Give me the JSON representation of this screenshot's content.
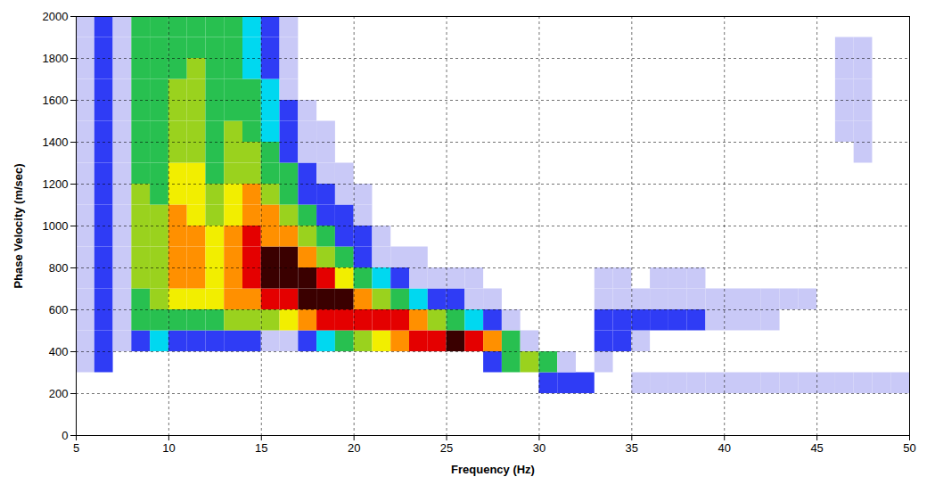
{
  "chart_data": {
    "type": "heatmap",
    "x_label": "Frequency (Hz)",
    "y_label": "Phase Velocity (m/sec)",
    "xlim": [
      5,
      50
    ],
    "ylim": [
      0,
      2000
    ],
    "xticks": [
      5,
      10,
      15,
      20,
      25,
      30,
      35,
      40,
      45,
      50
    ],
    "yticks": [
      0,
      200,
      400,
      600,
      800,
      1000,
      1200,
      1400,
      1600,
      1800,
      2000
    ],
    "grid": true,
    "frequency_edges": [
      5,
      6,
      7,
      8,
      9,
      10,
      11,
      12,
      13,
      14,
      15,
      16,
      17,
      18,
      19,
      20,
      21,
      22,
      23,
      24,
      25,
      26,
      27,
      28,
      29,
      30,
      31,
      32,
      33,
      34,
      35,
      36,
      37,
      38,
      39,
      40,
      41,
      42,
      43,
      44,
      45,
      46,
      47,
      48,
      49,
      50
    ],
    "velocity_edges": [
      0,
      100,
      200,
      300,
      400,
      500,
      600,
      700,
      800,
      900,
      1000,
      1100,
      1200,
      1300,
      1400,
      1500,
      1600,
      1700,
      1800,
      1900,
      2000
    ],
    "zlim": [
      0,
      9
    ],
    "amplitude": [
      [
        0,
        0,
        0,
        1,
        1,
        1,
        1,
        1,
        1,
        1,
        1,
        1,
        1,
        1,
        1,
        1,
        1,
        1,
        1,
        1
      ],
      [
        0,
        0,
        0,
        2,
        2,
        2,
        2,
        2,
        2,
        2,
        2,
        2,
        2,
        2,
        2,
        2,
        2,
        2,
        2,
        2
      ],
      [
        0,
        0,
        0,
        0,
        1,
        1,
        1,
        1,
        1,
        1,
        1,
        1,
        1,
        1,
        1,
        1,
        1,
        1,
        1,
        1
      ],
      [
        0,
        0,
        0,
        0,
        2,
        4,
        4,
        5,
        5,
        5,
        5,
        5,
        4,
        4,
        4,
        4,
        4,
        4,
        4,
        4
      ],
      [
        0,
        0,
        0,
        0,
        3,
        4,
        5,
        5,
        5,
        5,
        5,
        4,
        4,
        4,
        4,
        4,
        4,
        4,
        4,
        4
      ],
      [
        0,
        0,
        0,
        0,
        2,
        4,
        6,
        7,
        7,
        7,
        7,
        6,
        6,
        5,
        5,
        5,
        5,
        4,
        4,
        4
      ],
      [
        0,
        0,
        0,
        0,
        2,
        4,
        6,
        7,
        7,
        7,
        6,
        6,
        6,
        5,
        5,
        5,
        5,
        5,
        4,
        4
      ],
      [
        0,
        0,
        0,
        0,
        2,
        4,
        6,
        6,
        6,
        6,
        5,
        5,
        4,
        4,
        4,
        4,
        4,
        4,
        4,
        4
      ],
      [
        0,
        0,
        0,
        0,
        2,
        5,
        7,
        7,
        7,
        7,
        6,
        6,
        5,
        5,
        5,
        4,
        4,
        4,
        4,
        4
      ],
      [
        0,
        0,
        0,
        0,
        2,
        5,
        7,
        8,
        8,
        8,
        7,
        7,
        5,
        5,
        4,
        4,
        4,
        3,
        3,
        3
      ],
      [
        0,
        0,
        0,
        0,
        1,
        5,
        8,
        9,
        9,
        7,
        7,
        5,
        4,
        4,
        3,
        3,
        3,
        2,
        2,
        2
      ],
      [
        0,
        0,
        0,
        0,
        1,
        6,
        8,
        9,
        9,
        7,
        5,
        4,
        4,
        2,
        2,
        2,
        1,
        1,
        1,
        1
      ],
      [
        0,
        0,
        0,
        0,
        2,
        7,
        9,
        9,
        7,
        5,
        4,
        2,
        2,
        1,
        1,
        1,
        0,
        0,
        0,
        0
      ],
      [
        0,
        0,
        0,
        0,
        3,
        8,
        9,
        8,
        5,
        4,
        2,
        2,
        1,
        1,
        1,
        0,
        0,
        0,
        0,
        0
      ],
      [
        0,
        0,
        0,
        0,
        4,
        8,
        9,
        6,
        4,
        2,
        2,
        1,
        1,
        0,
        0,
        0,
        0,
        0,
        0,
        0
      ],
      [
        0,
        0,
        0,
        0,
        5,
        8,
        7,
        4,
        2,
        2,
        1,
        1,
        0,
        0,
        0,
        0,
        0,
        0,
        0,
        0
      ],
      [
        0,
        0,
        0,
        0,
        6,
        8,
        5,
        3,
        1,
        1,
        0,
        0,
        0,
        0,
        0,
        0,
        0,
        0,
        0,
        0
      ],
      [
        0,
        0,
        0,
        0,
        7,
        8,
        4,
        2,
        1,
        0,
        0,
        0,
        0,
        0,
        0,
        0,
        0,
        0,
        0,
        0
      ],
      [
        0,
        0,
        0,
        0,
        8,
        7,
        3,
        1,
        1,
        0,
        0,
        0,
        0,
        0,
        0,
        0,
        0,
        0,
        0,
        0
      ],
      [
        0,
        0,
        0,
        0,
        8,
        5,
        2,
        1,
        0,
        0,
        0,
        0,
        0,
        0,
        0,
        0,
        0,
        0,
        0,
        0
      ],
      [
        0,
        0,
        0,
        0,
        9,
        4,
        2,
        1,
        0,
        0,
        0,
        0,
        0,
        0,
        0,
        0,
        0,
        0,
        0,
        0
      ],
      [
        0,
        0,
        0,
        0,
        8,
        3,
        1,
        1,
        0,
        0,
        0,
        0,
        0,
        0,
        0,
        0,
        0,
        0,
        0,
        0
      ],
      [
        0,
        0,
        0,
        2,
        7,
        2,
        1,
        0,
        0,
        0,
        0,
        0,
        0,
        0,
        0,
        0,
        0,
        0,
        0,
        0
      ],
      [
        0,
        0,
        0,
        4,
        4,
        1,
        0,
        0,
        0,
        0,
        0,
        0,
        0,
        0,
        0,
        0,
        0,
        0,
        0,
        0
      ],
      [
        0,
        0,
        0,
        5,
        1,
        0,
        0,
        0,
        0,
        0,
        0,
        0,
        0,
        0,
        0,
        0,
        0,
        0,
        0,
        0
      ],
      [
        0,
        0,
        2,
        4,
        0,
        0,
        0,
        0,
        0,
        0,
        0,
        0,
        0,
        0,
        0,
        0,
        0,
        0,
        0,
        0
      ],
      [
        0,
        0,
        2,
        1,
        0,
        0,
        0,
        0,
        0,
        0,
        0,
        0,
        0,
        0,
        0,
        0,
        0,
        0,
        0,
        0
      ],
      [
        0,
        0,
        2,
        0,
        0,
        0,
        0,
        0,
        0,
        0,
        0,
        0,
        0,
        0,
        0,
        0,
        0,
        0,
        0,
        0
      ],
      [
        0,
        0,
        0,
        1,
        2,
        2,
        1,
        1,
        0,
        0,
        0,
        0,
        0,
        0,
        0,
        0,
        0,
        0,
        0,
        0
      ],
      [
        0,
        0,
        0,
        0,
        2,
        2,
        1,
        1,
        0,
        0,
        0,
        0,
        0,
        0,
        0,
        0,
        0,
        0,
        0,
        0
      ],
      [
        0,
        0,
        1,
        0,
        1,
        2,
        1,
        0,
        0,
        0,
        0,
        0,
        0,
        0,
        0,
        0,
        0,
        0,
        0,
        0
      ],
      [
        0,
        0,
        1,
        0,
        0,
        2,
        1,
        1,
        0,
        0,
        0,
        0,
        0,
        0,
        0,
        0,
        0,
        0,
        0,
        0
      ],
      [
        0,
        0,
        1,
        0,
        0,
        2,
        1,
        1,
        0,
        0,
        0,
        0,
        0,
        0,
        0,
        0,
        0,
        0,
        0,
        0
      ],
      [
        0,
        0,
        1,
        0,
        0,
        2,
        1,
        1,
        0,
        0,
        0,
        0,
        0,
        0,
        0,
        0,
        0,
        0,
        0,
        0
      ],
      [
        0,
        0,
        1,
        0,
        0,
        1,
        1,
        0,
        0,
        0,
        0,
        0,
        0,
        0,
        0,
        0,
        0,
        0,
        0,
        0
      ],
      [
        0,
        0,
        1,
        0,
        0,
        1,
        1,
        0,
        0,
        0,
        0,
        0,
        0,
        0,
        0,
        0,
        0,
        0,
        0,
        0
      ],
      [
        0,
        0,
        1,
        0,
        0,
        1,
        1,
        0,
        0,
        0,
        0,
        0,
        0,
        0,
        0,
        0,
        0,
        0,
        0,
        0
      ],
      [
        0,
        0,
        1,
        0,
        0,
        1,
        1,
        0,
        0,
        0,
        0,
        0,
        0,
        0,
        0,
        0,
        0,
        0,
        0,
        0
      ],
      [
        0,
        0,
        1,
        0,
        0,
        0,
        1,
        0,
        0,
        0,
        0,
        0,
        0,
        0,
        0,
        0,
        0,
        0,
        0,
        0
      ],
      [
        0,
        0,
        1,
        0,
        0,
        0,
        1,
        0,
        0,
        0,
        0,
        0,
        0,
        0,
        0,
        0,
        0,
        0,
        0,
        0
      ],
      [
        0,
        0,
        1,
        0,
        0,
        0,
        0,
        0,
        0,
        0,
        0,
        0,
        0,
        0,
        0,
        0,
        0,
        0,
        0,
        0
      ],
      [
        0,
        0,
        1,
        0,
        0,
        0,
        0,
        0,
        0,
        0,
        0,
        0,
        0,
        0,
        1,
        1,
        1,
        1,
        1,
        0
      ],
      [
        0,
        0,
        1,
        0,
        0,
        0,
        0,
        0,
        0,
        0,
        0,
        0,
        0,
        1,
        1,
        1,
        1,
        1,
        1,
        0
      ],
      [
        0,
        0,
        1,
        0,
        0,
        0,
        0,
        0,
        0,
        0,
        0,
        0,
        0,
        0,
        0,
        0,
        0,
        0,
        0,
        0
      ],
      [
        0,
        0,
        1,
        0,
        0,
        0,
        0,
        0,
        0,
        0,
        0,
        0,
        0,
        0,
        0,
        0,
        0,
        0,
        0,
        0
      ]
    ]
  }
}
